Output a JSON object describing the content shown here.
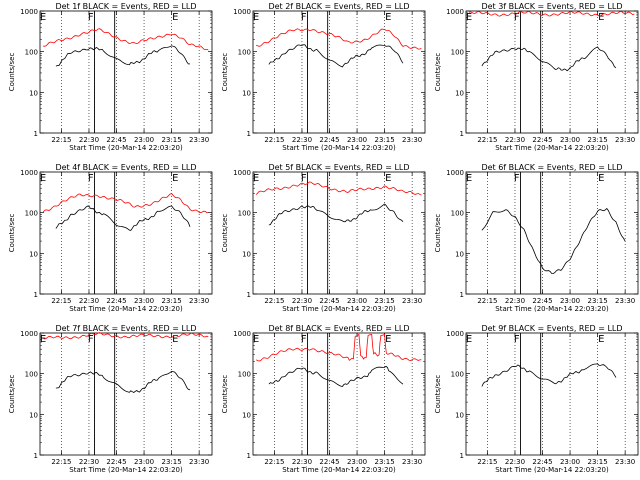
{
  "colors": {
    "background": "#ffffff",
    "events": "#000000",
    "lld": "#ff0000"
  },
  "chart_data": [
    {
      "type": "line",
      "title": "Det 1f BLACK = Events, RED = LLD",
      "xlabel": "Start Time (20-Mar-14 22:03:20)",
      "ylabel": "Counts/sec",
      "xticks": [
        "22:15",
        "22:30",
        "22:45",
        "23:00",
        "23:15",
        "23:30"
      ],
      "yticks": [
        "1",
        "10",
        "100",
        "1000"
      ],
      "yscale": "log",
      "ylim": [
        1,
        1000
      ],
      "markers": [
        {
          "label": "E",
          "t": "22:05"
        },
        {
          "label": "F",
          "t": "22:31"
        },
        {
          "label": "E",
          "t": "23:17"
        }
      ],
      "vlines": [
        "22:33",
        "22:44"
      ],
      "series": [
        {
          "role": "LLD",
          "color": "#ff0000",
          "x": [
            "22:05",
            "22:15",
            "22:25",
            "22:35",
            "22:45",
            "22:55",
            "23:05",
            "23:15",
            "23:20",
            "23:25",
            "23:35"
          ],
          "values": [
            130,
            190,
            280,
            330,
            230,
            160,
            200,
            300,
            230,
            140,
            110
          ]
        },
        {
          "role": "Events",
          "color": "#000000",
          "x": [
            "22:12",
            "22:20",
            "22:30",
            "22:38",
            "22:45",
            "22:52",
            "23:00",
            "23:08",
            "23:15",
            "23:20",
            "23:25"
          ],
          "values": [
            45,
            90,
            130,
            100,
            60,
            45,
            70,
            110,
            145,
            100,
            50
          ]
        }
      ]
    },
    {
      "type": "line",
      "title": "Det 2f BLACK = Events, RED = LLD",
      "xlabel": "Start Time (20-Mar-14 22:03:20)",
      "ylabel": "Counts/sec",
      "xticks": [
        "22:15",
        "22:30",
        "22:45",
        "23:00",
        "23:15",
        "23:30"
      ],
      "yticks": [
        "1",
        "10",
        "100",
        "1000"
      ],
      "yscale": "log",
      "ylim": [
        1,
        1000
      ],
      "markers": [
        {
          "label": "E",
          "t": "22:05"
        },
        {
          "label": "F",
          "t": "22:31"
        },
        {
          "label": "E",
          "t": "23:17"
        }
      ],
      "vlines": [
        "22:33",
        "22:44"
      ],
      "series": [
        {
          "role": "LLD",
          "color": "#ff0000",
          "x": [
            "22:05",
            "22:15",
            "22:25",
            "22:35",
            "22:45",
            "22:55",
            "23:05",
            "23:15",
            "23:20",
            "23:25",
            "23:35"
          ],
          "values": [
            140,
            220,
            320,
            380,
            260,
            170,
            210,
            340,
            250,
            150,
            120
          ]
        },
        {
          "role": "Events",
          "color": "#000000",
          "x": [
            "22:12",
            "22:20",
            "22:30",
            "22:38",
            "22:45",
            "22:52",
            "23:00",
            "23:08",
            "23:15",
            "23:20",
            "23:25"
          ],
          "values": [
            45,
            95,
            140,
            110,
            65,
            48,
            75,
            120,
            150,
            105,
            52
          ]
        }
      ]
    },
    {
      "type": "line",
      "title": "Det 3f BLACK = Events, RED = LLD",
      "xlabel": "Start Time (20-Mar-14 22:03:20)",
      "ylabel": "Counts/sec",
      "xticks": [
        "22:15",
        "22:30",
        "22:45",
        "23:00",
        "23:15",
        "23:30"
      ],
      "yticks": [
        "1",
        "10",
        "100",
        "1000"
      ],
      "yscale": "log",
      "ylim": [
        1,
        1000
      ],
      "markers": [
        {
          "label": "E",
          "t": "22:05"
        },
        {
          "label": "F",
          "t": "22:31"
        },
        {
          "label": "E",
          "t": "23:17"
        }
      ],
      "vlines": [
        "22:33",
        "22:44"
      ],
      "series": [
        {
          "role": "LLD",
          "color": "#ff0000",
          "x": [
            "22:05",
            "22:35",
            "23:05",
            "23:35"
          ],
          "values": [
            850,
            860,
            860,
            850
          ]
        },
        {
          "role": "Events",
          "color": "#000000",
          "x": [
            "22:12",
            "22:20",
            "22:30",
            "22:38",
            "22:45",
            "22:52",
            "23:00",
            "23:08",
            "23:15",
            "23:20",
            "23:25"
          ],
          "values": [
            50,
            95,
            130,
            95,
            55,
            35,
            40,
            75,
            130,
            90,
            40
          ]
        }
      ]
    },
    {
      "type": "line",
      "title": "Det 4f BLACK = Events, RED = LLD",
      "xlabel": "Start Time (20-Mar-14 22:03:20)",
      "ylabel": "Counts/sec",
      "xticks": [
        "22:15",
        "22:30",
        "22:45",
        "23:00",
        "23:15",
        "23:30"
      ],
      "yticks": [
        "1",
        "10",
        "100",
        "1000"
      ],
      "yscale": "log",
      "ylim": [
        1,
        1000
      ],
      "markers": [
        {
          "label": "E",
          "t": "22:05"
        },
        {
          "label": "F",
          "t": "22:31"
        },
        {
          "label": "E",
          "t": "23:17"
        }
      ],
      "vlines": [
        "22:33",
        "22:44"
      ],
      "series": [
        {
          "role": "LLD",
          "color": "#ff0000",
          "x": [
            "22:05",
            "22:15",
            "22:25",
            "22:35",
            "22:45",
            "22:55",
            "23:05",
            "23:15",
            "23:20",
            "23:25",
            "23:35"
          ],
          "values": [
            110,
            180,
            260,
            280,
            200,
            140,
            180,
            260,
            200,
            130,
            100
          ]
        },
        {
          "role": "Events",
          "color": "#000000",
          "x": [
            "22:12",
            "22:20",
            "22:30",
            "22:38",
            "22:45",
            "22:52",
            "23:00",
            "23:08",
            "23:15",
            "23:20",
            "23:25"
          ],
          "values": [
            40,
            90,
            130,
            95,
            55,
            40,
            65,
            105,
            140,
            90,
            45
          ]
        }
      ]
    },
    {
      "type": "line",
      "title": "Det 5f BLACK = Events, RED = LLD",
      "xlabel": "Start Time (20-Mar-14 22:03:20)",
      "ylabel": "Counts/sec",
      "xticks": [
        "22:15",
        "22:30",
        "22:45",
        "23:00",
        "23:15",
        "23:30"
      ],
      "yticks": [
        "1",
        "10",
        "100",
        "1000"
      ],
      "yscale": "log",
      "ylim": [
        1,
        1000
      ],
      "markers": [
        {
          "label": "E",
          "t": "22:05"
        },
        {
          "label": "F",
          "t": "22:31"
        },
        {
          "label": "E",
          "t": "23:17"
        }
      ],
      "vlines": [
        "22:33",
        "22:44"
      ],
      "series": [
        {
          "role": "LLD",
          "color": "#ff0000",
          "x": [
            "22:05",
            "22:15",
            "22:25",
            "22:35",
            "22:45",
            "22:55",
            "23:05",
            "23:15",
            "23:20",
            "23:25",
            "23:35"
          ],
          "values": [
            280,
            380,
            480,
            500,
            420,
            330,
            360,
            470,
            400,
            310,
            270
          ]
        },
        {
          "role": "Events",
          "color": "#000000",
          "x": [
            "22:12",
            "22:20",
            "22:30",
            "22:38",
            "22:45",
            "22:52",
            "23:00",
            "23:08",
            "23:15",
            "23:20",
            "23:25"
          ],
          "values": [
            55,
            100,
            150,
            120,
            75,
            55,
            80,
            120,
            155,
            110,
            60
          ]
        }
      ]
    },
    {
      "type": "line",
      "title": "Det 6f BLACK = Events, RED = LLD",
      "xlabel": "Start Time (20-Mar-14 22:03:20)",
      "ylabel": "Counts/sec",
      "xticks": [
        "22:15",
        "22:30",
        "22:45",
        "23:00",
        "23:15",
        "23:30"
      ],
      "yticks": [
        "1",
        "10",
        "100",
        "1000"
      ],
      "yscale": "log",
      "ylim": [
        1,
        1000
      ],
      "markers": [
        {
          "label": "E",
          "t": "22:05"
        },
        {
          "label": "F",
          "t": "22:31"
        },
        {
          "label": "E",
          "t": "23:17"
        }
      ],
      "vlines": [
        "22:33",
        "22:44"
      ],
      "series": [
        {
          "role": "Events",
          "color": "#000000",
          "x": [
            "22:12",
            "22:18",
            "22:25",
            "22:30",
            "22:35",
            "22:40",
            "22:45",
            "22:50",
            "22:55",
            "23:00",
            "23:05",
            "23:10",
            "23:15",
            "23:20",
            "23:25",
            "23:30"
          ],
          "values": [
            35,
            100,
            110,
            80,
            40,
            12,
            4,
            3,
            4,
            8,
            20,
            50,
            100,
            120,
            60,
            20
          ]
        }
      ]
    },
    {
      "type": "line",
      "title": "Det 7f BLACK = Events, RED = LLD",
      "xlabel": "Start Time (20-Mar-14 22:03:20)",
      "ylabel": "Counts/sec",
      "xticks": [
        "22:15",
        "22:30",
        "22:45",
        "23:00",
        "23:15",
        "23:30"
      ],
      "yticks": [
        "1",
        "10",
        "100",
        "1000"
      ],
      "yscale": "log",
      "ylim": [
        1,
        1000
      ],
      "markers": [
        {
          "label": "E",
          "t": "22:05"
        },
        {
          "label": "F",
          "t": "22:31"
        },
        {
          "label": "E",
          "t": "23:17"
        }
      ],
      "vlines": [
        "22:33",
        "22:44"
      ],
      "series": [
        {
          "role": "LLD",
          "color": "#ff0000",
          "x": [
            "22:05",
            "22:20",
            "22:35",
            "22:50",
            "23:05",
            "23:20",
            "23:35"
          ],
          "values": [
            700,
            820,
            900,
            850,
            820,
            900,
            820
          ]
        },
        {
          "role": "Events",
          "color": "#000000",
          "x": [
            "22:12",
            "22:20",
            "22:30",
            "22:38",
            "22:45",
            "22:52",
            "23:00",
            "23:08",
            "23:15",
            "23:20",
            "23:25"
          ],
          "values": [
            45,
            85,
            115,
            80,
            50,
            32,
            45,
            80,
            120,
            85,
            40
          ]
        }
      ]
    },
    {
      "type": "line",
      "title": "Det 8f BLACK = Events, RED = LLD",
      "xlabel": "Start Time (20-Mar-14 22:03:20)",
      "ylabel": "Counts/sec",
      "xticks": [
        "22:15",
        "22:30",
        "22:45",
        "23:00",
        "23:15",
        "23:30"
      ],
      "yticks": [
        "1",
        "10",
        "100",
        "1000"
      ],
      "yscale": "log",
      "ylim": [
        1,
        1000
      ],
      "markers": [
        {
          "label": "E",
          "t": "22:05"
        },
        {
          "label": "F",
          "t": "22:31"
        },
        {
          "label": "E",
          "t": "23:17"
        }
      ],
      "vlines": [
        "22:33",
        "22:44"
      ],
      "series": [
        {
          "role": "LLD",
          "color": "#ff0000",
          "x": [
            "22:05",
            "22:15",
            "22:25",
            "22:35",
            "22:45",
            "22:55",
            "22:58",
            "22:59",
            "23:01",
            "23:02",
            "23:05",
            "23:06",
            "23:08",
            "23:09",
            "23:12",
            "23:13",
            "23:15",
            "23:16",
            "23:25",
            "23:35"
          ],
          "values": [
            220,
            300,
            380,
            440,
            300,
            240,
            240,
            900,
            900,
            260,
            260,
            900,
            900,
            300,
            300,
            900,
            900,
            300,
            250,
            220
          ]
        },
        {
          "role": "Events",
          "color": "#000000",
          "x": [
            "22:12",
            "22:20",
            "22:30",
            "22:38",
            "22:45",
            "22:52",
            "22:56",
            "23:05",
            "23:08",
            "23:15",
            "23:18",
            "23:25"
          ],
          "values": [
            50,
            90,
            130,
            105,
            70,
            55,
            60,
            90,
            115,
            150,
            110,
            55
          ]
        }
      ]
    },
    {
      "type": "line",
      "title": "Det 9f BLACK = Events, RED = LLD",
      "xlabel": "Start Time (20-Mar-14 22:03:20)",
      "ylabel": "Counts/sec",
      "xticks": [
        "22:15",
        "22:30",
        "22:45",
        "23:00",
        "23:15",
        "23:30"
      ],
      "yticks": [
        "1",
        "10",
        "100",
        "1000"
      ],
      "yscale": "log",
      "ylim": [
        1,
        1000
      ],
      "markers": [
        {
          "label": "E",
          "t": "22:05"
        },
        {
          "label": "F",
          "t": "22:31"
        },
        {
          "label": "E",
          "t": "23:17"
        }
      ],
      "vlines": [
        "22:33",
        "22:44"
      ],
      "series": [
        {
          "role": "Events",
          "color": "#000000",
          "x": [
            "22:12",
            "22:20",
            "22:30",
            "22:38",
            "22:45",
            "22:52",
            "23:00",
            "23:08",
            "23:15",
            "23:20",
            "23:25"
          ],
          "values": [
            50,
            100,
            150,
            120,
            80,
            60,
            90,
            140,
            190,
            150,
            80
          ]
        }
      ]
    }
  ]
}
